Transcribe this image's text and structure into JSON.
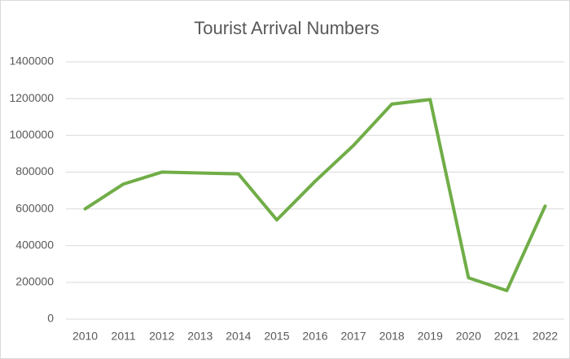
{
  "chart_data": {
    "type": "line",
    "title": "Tourist Arrival Numbers",
    "categories": [
      "2010",
      "2011",
      "2012",
      "2013",
      "2014",
      "2015",
      "2016",
      "2017",
      "2018",
      "2019",
      "2020",
      "2021",
      "2022"
    ],
    "values": [
      600000,
      735000,
      800000,
      795000,
      790000,
      540000,
      750000,
      945000,
      1170000,
      1195000,
      225000,
      155000,
      615000
    ],
    "color": "#70ad47",
    "ylim": [
      0,
      1400000
    ],
    "yticks": [
      0,
      200000,
      400000,
      600000,
      800000,
      1000000,
      1200000,
      1400000
    ],
    "grid": true
  }
}
